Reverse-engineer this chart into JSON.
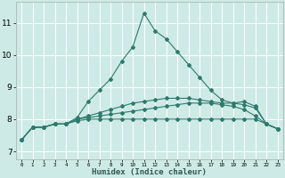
{
  "xlabel": "Humidex (Indice chaleur)",
  "ylabel": "",
  "bg_color": "#ceeae6",
  "grid_color": "#ffffff",
  "line_color": "#2d7a6e",
  "xlim": [
    -0.5,
    23.5
  ],
  "ylim": [
    6.75,
    11.65
  ],
  "xticks": [
    0,
    1,
    2,
    3,
    4,
    5,
    6,
    7,
    8,
    9,
    10,
    11,
    12,
    13,
    14,
    15,
    16,
    17,
    18,
    19,
    20,
    21,
    22,
    23
  ],
  "yticks": [
    7,
    8,
    9,
    10,
    11
  ],
  "lines": [
    {
      "x": [
        0,
        1,
        2,
        3,
        4,
        5,
        6,
        7,
        8,
        9,
        10,
        11,
        12,
        13,
        14,
        15,
        16,
        17,
        18,
        19,
        20,
        21,
        22,
        23
      ],
      "y": [
        7.35,
        7.75,
        7.75,
        7.85,
        7.85,
        8.05,
        8.55,
        8.9,
        9.25,
        9.8,
        10.25,
        11.3,
        10.75,
        10.5,
        10.1,
        9.7,
        9.3,
        8.9,
        8.6,
        8.5,
        8.55,
        8.4,
        7.85,
        7.7
      ]
    },
    {
      "x": [
        0,
        1,
        2,
        3,
        4,
        5,
        6,
        7,
        8,
        9,
        10,
        11,
        12,
        13,
        14,
        15,
        16,
        17,
        18,
        19,
        20,
        21,
        22,
        23
      ],
      "y": [
        7.35,
        7.75,
        7.75,
        7.85,
        7.85,
        8.0,
        8.1,
        8.2,
        8.3,
        8.4,
        8.5,
        8.55,
        8.6,
        8.65,
        8.65,
        8.65,
        8.6,
        8.55,
        8.5,
        8.5,
        8.45,
        8.35,
        7.85,
        7.7
      ]
    },
    {
      "x": [
        0,
        1,
        2,
        3,
        4,
        5,
        6,
        7,
        8,
        9,
        10,
        11,
        12,
        13,
        14,
        15,
        16,
        17,
        18,
        19,
        20,
        21,
        22,
        23
      ],
      "y": [
        7.35,
        7.75,
        7.75,
        7.85,
        7.85,
        8.0,
        8.05,
        8.1,
        8.15,
        8.2,
        8.25,
        8.3,
        8.35,
        8.4,
        8.45,
        8.5,
        8.5,
        8.5,
        8.45,
        8.4,
        8.3,
        8.1,
        7.85,
        7.7
      ]
    },
    {
      "x": [
        0,
        1,
        2,
        3,
        4,
        5,
        6,
        7,
        8,
        9,
        10,
        11,
        12,
        13,
        14,
        15,
        16,
        17,
        18,
        19,
        20,
        21,
        22,
        23
      ],
      "y": [
        7.35,
        7.75,
        7.75,
        7.85,
        7.85,
        7.95,
        8.0,
        8.0,
        8.0,
        8.0,
        8.0,
        8.0,
        8.0,
        8.0,
        8.0,
        8.0,
        8.0,
        8.0,
        8.0,
        8.0,
        8.0,
        8.0,
        7.85,
        7.7
      ]
    }
  ]
}
